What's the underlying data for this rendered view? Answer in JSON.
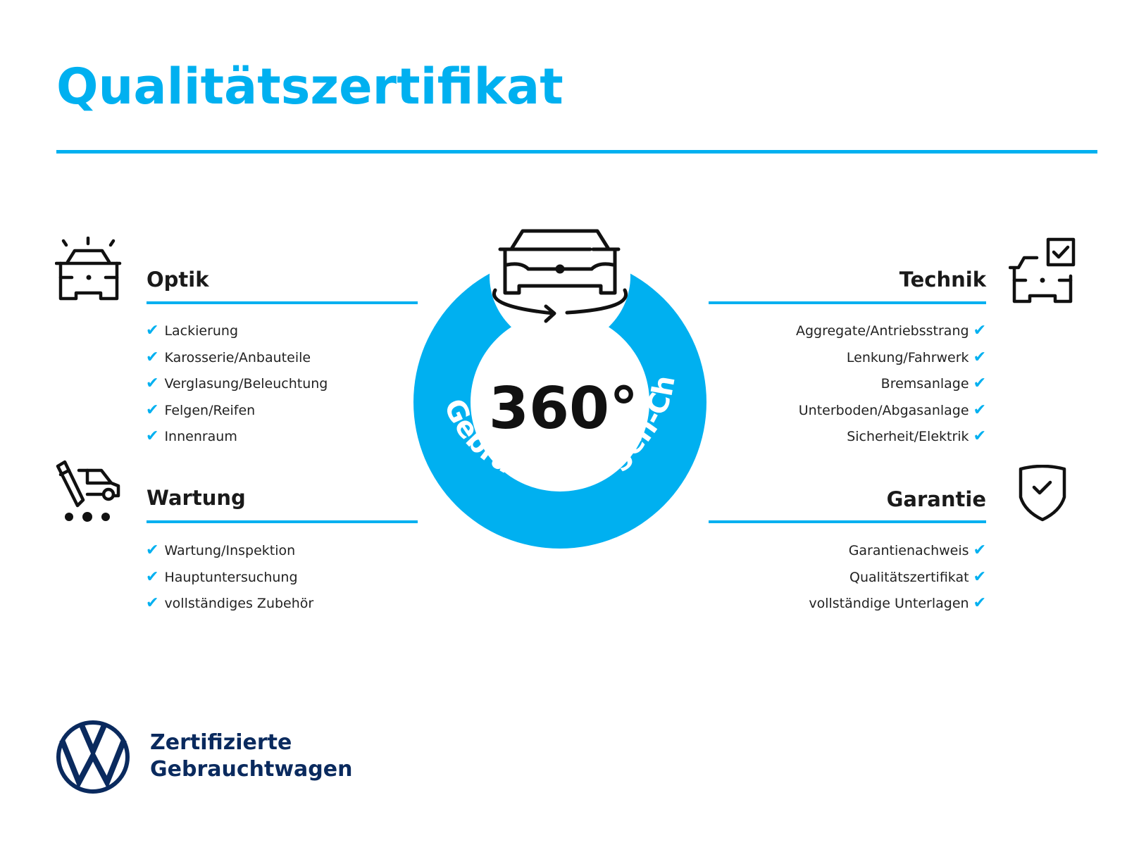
{
  "title": "Qualitätszertifikat",
  "colors": {
    "accent": "#00b0f0",
    "brand_navy": "#0a2a5e",
    "text": "#1a1a1a"
  },
  "badge": {
    "big_text": "360°",
    "ring_text": "Gebrauchtwagen-Check",
    "icon": "rotating-car-icon"
  },
  "sections": {
    "optik": {
      "heading": "Optik",
      "icon": "car-lights-icon",
      "items": [
        "Lackierung",
        "Karosserie/Anbauteile",
        "Verglasung/Beleuchtung",
        "Felgen/Reifen",
        "Innenraum"
      ]
    },
    "wartung": {
      "heading": "Wartung",
      "icon": "service-car-icon",
      "items": [
        "Wartung/Inspektion",
        "Hauptuntersuchung",
        "vollständiges Zubehör"
      ]
    },
    "technik": {
      "heading": "Technik",
      "icon": "car-checkbox-icon",
      "items": [
        "Aggregate/Antriebsstrang",
        "Lenkung/Fahrwerk",
        "Bremsanlage",
        "Unterboden/Abgasanlage",
        "Sicherheit/Elektrik"
      ]
    },
    "garantie": {
      "heading": "Garantie",
      "icon": "shield-check-icon",
      "items": [
        "Garantienachweis",
        "Qualitätszertifikat",
        "vollständige Unterlagen"
      ]
    }
  },
  "check_glyph": "✔",
  "logo": {
    "brand": "VW",
    "line1": "Zertifizierte",
    "line2": "Gebrauchtwagen"
  }
}
